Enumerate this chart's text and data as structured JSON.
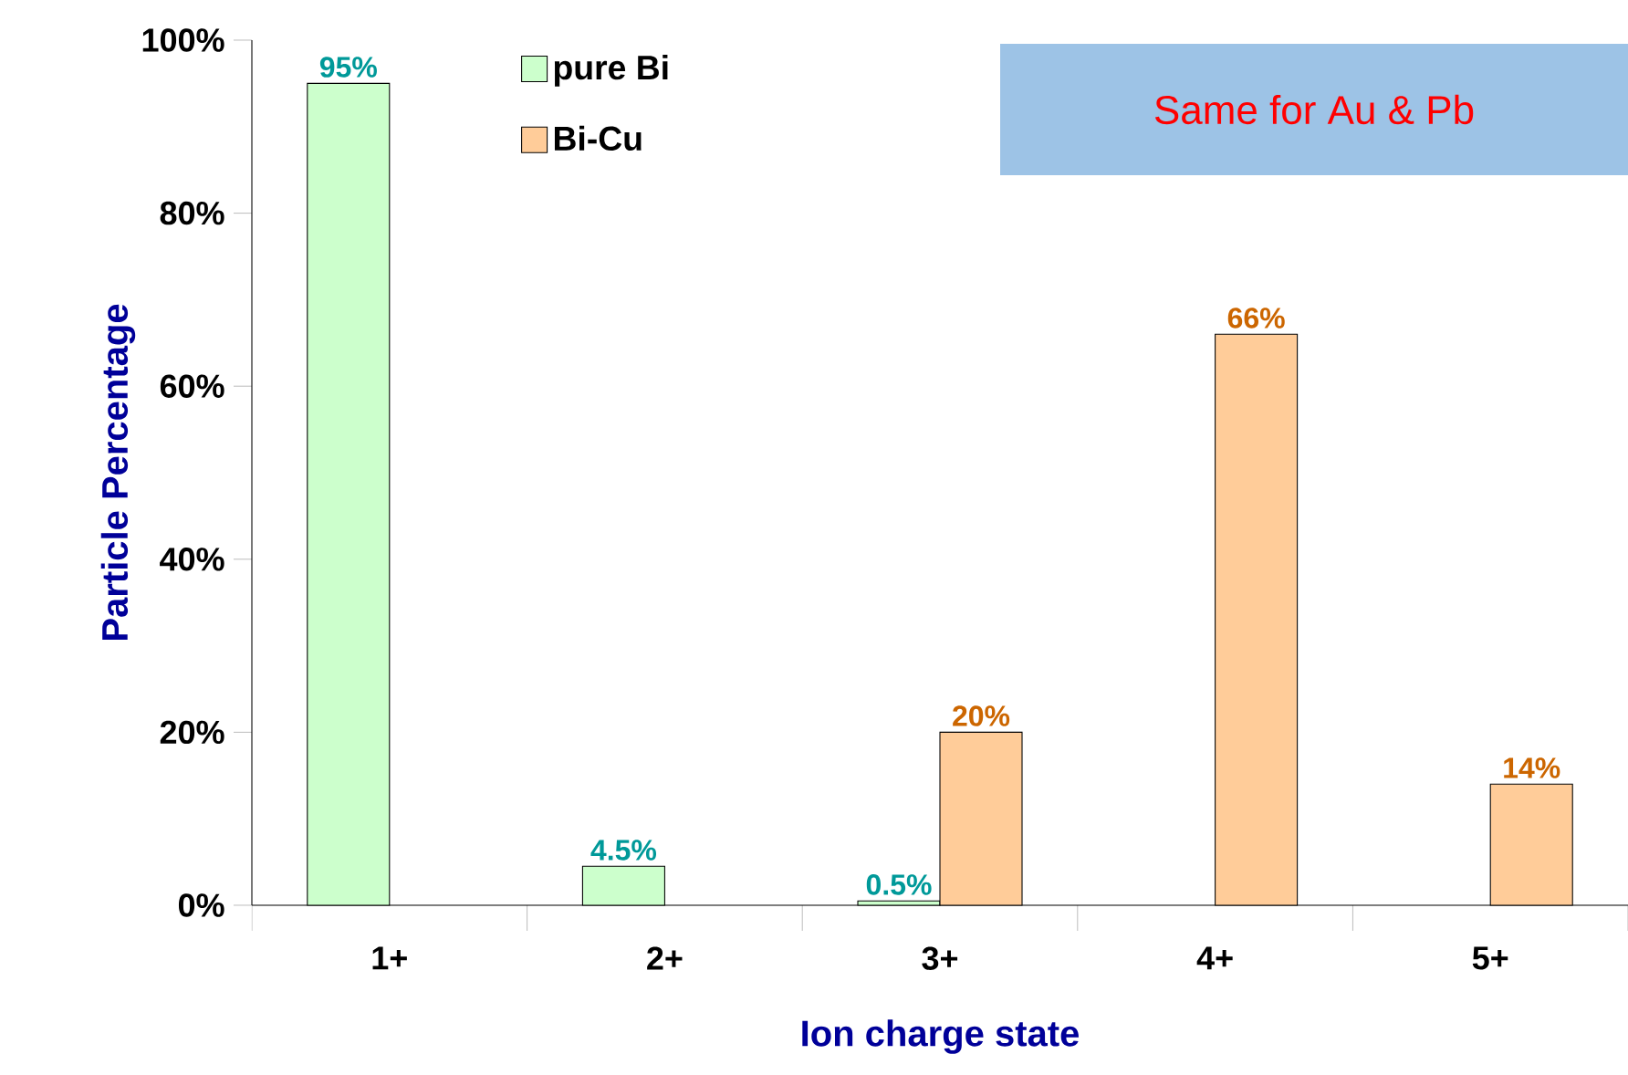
{
  "chart_data": {
    "type": "bar",
    "categories": [
      "1+",
      "2+",
      "3+",
      "4+",
      "5+"
    ],
    "xlabel": "Ion charge state",
    "ylabel": "Particle Percentage",
    "ylim": [
      0,
      100
    ],
    "yticks": [
      {
        "value": 0,
        "label": "0%"
      },
      {
        "value": 20,
        "label": "20%"
      },
      {
        "value": 40,
        "label": "40%"
      },
      {
        "value": 60,
        "label": "60%"
      },
      {
        "value": 80,
        "label": "80%"
      },
      {
        "value": 100,
        "label": "100%"
      }
    ],
    "series": [
      {
        "name": "pure Bi",
        "color": "#ccffcc",
        "values": [
          95,
          4.5,
          0.5,
          null,
          null
        ],
        "value_labels": [
          "95%",
          "4.5%",
          "0.5%",
          null,
          null
        ]
      },
      {
        "name": "Bi-Cu",
        "color": "#ffcc99",
        "values": [
          null,
          null,
          20,
          66,
          14
        ],
        "value_labels": [
          null,
          null,
          "20%",
          "66%",
          "14%"
        ]
      }
    ],
    "legend": "top",
    "annotations": [
      "Same for Au & Pb"
    ]
  }
}
